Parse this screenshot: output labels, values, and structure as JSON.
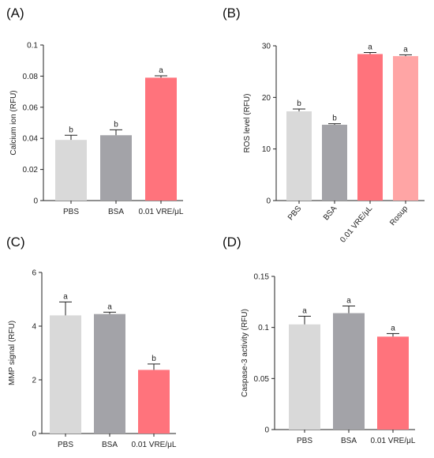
{
  "chart_data": [
    {
      "type": "bar",
      "panel": "(A)",
      "ylabel": "Calcium ion (RFU)",
      "ylim": [
        0,
        0.1
      ],
      "yticks": [
        "0",
        "0.02",
        "0.04",
        "0.06",
        "0.08",
        "0.1"
      ],
      "categories": [
        "PBS",
        "BSA",
        "0.01 VRE/μL"
      ],
      "values": [
        0.039,
        0.042,
        0.079
      ],
      "errors": [
        0.003,
        0.0035,
        0.0012
      ],
      "significance": [
        "b",
        "b",
        "a"
      ],
      "colors": [
        "#d9d9d9",
        "#a3a3a8",
        "#ff737c"
      ]
    },
    {
      "type": "bar",
      "panel": "(B)",
      "ylabel": "ROS level (RFU)",
      "ylim": [
        0,
        30
      ],
      "yticks": [
        "0",
        "10",
        "20",
        "30"
      ],
      "categories": [
        "PBS",
        "BSA",
        "0.01 VRE/μL",
        "Rosup"
      ],
      "values": [
        17.3,
        14.7,
        28.4,
        28.0
      ],
      "errors": [
        0.45,
        0.2,
        0.3,
        0.25
      ],
      "significance": [
        "b",
        "b",
        "a",
        "a"
      ],
      "colors": [
        "#d9d9d9",
        "#a3a3a8",
        "#ff737c",
        "#ffa5a5"
      ]
    },
    {
      "type": "bar",
      "panel": "(C)",
      "ylabel": "MMP signal (RFU)",
      "ylim": [
        0,
        6
      ],
      "yticks": [
        "0",
        "2",
        "4",
        "6"
      ],
      "categories": [
        "PBS",
        "BSA",
        "0.01 VRE/μL"
      ],
      "values": [
        4.4,
        4.45,
        2.37
      ],
      "errors": [
        0.5,
        0.07,
        0.22
      ],
      "significance": [
        "a",
        "a",
        "b"
      ],
      "colors": [
        "#d9d9d9",
        "#a3a3a8",
        "#ff737c"
      ]
    },
    {
      "type": "bar",
      "panel": "(D)",
      "ylabel": "Caspase-3 activity (RFU)",
      "ylim": [
        0,
        0.15
      ],
      "yticks": [
        "0",
        "0.05",
        "0.1",
        "0.15"
      ],
      "categories": [
        "PBS",
        "BSA",
        "0.01 VRE/μL"
      ],
      "values": [
        0.103,
        0.114,
        0.091
      ],
      "errors": [
        0.008,
        0.007,
        0.003
      ],
      "significance": [
        "a",
        "a",
        "a"
      ],
      "colors": [
        "#d9d9d9",
        "#a3a3a8",
        "#ff737c"
      ]
    }
  ]
}
